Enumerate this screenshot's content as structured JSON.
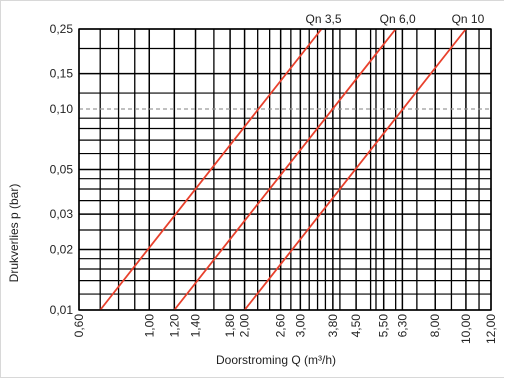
{
  "chart_data": {
    "type": "line",
    "xlabel": "Doorstroming Q (m³/h)",
    "ylabel": "Drukverlies p (bar)",
    "xscale": "log",
    "yscale": "log",
    "xlim": [
      0.6,
      12.0
    ],
    "ylim": [
      0.01,
      0.25
    ],
    "x_ticks": [
      0.6,
      1.0,
      1.2,
      1.4,
      1.8,
      2.0,
      2.6,
      3.0,
      3.8,
      4.5,
      5.5,
      6.3,
      8.0,
      10.0,
      12.0
    ],
    "x_tick_labels": [
      "0,60",
      "1,00",
      "1,20",
      "1,40",
      "1,80",
      "2,00",
      "2,60",
      "3,00",
      "3,80",
      "4,50",
      "5,50",
      "6,30",
      "8,00",
      "10,00",
      "12,00"
    ],
    "y_ticks": [
      0.01,
      0.02,
      0.03,
      0.05,
      0.1,
      0.15,
      0.25
    ],
    "y_tick_labels": [
      "0,01",
      "0,02",
      "0,03",
      "0,05",
      "0,10",
      "0,15",
      "0,25"
    ],
    "minor_x": [
      0.7,
      0.8,
      0.9,
      1.6,
      2.2,
      2.4,
      2.8,
      3.2,
      3.4,
      3.6,
      4.0,
      5.0,
      5.2,
      6.0,
      7.0,
      9.0,
      11.0
    ],
    "minor_y": [
      0.012,
      0.014,
      0.016,
      0.018,
      0.025,
      0.035,
      0.04,
      0.045,
      0.06,
      0.07,
      0.08,
      0.09,
      0.12,
      0.2
    ],
    "dashed_y": [
      0.1
    ],
    "grid": true,
    "series": [
      {
        "name": "Qn 3,5",
        "x": [
          0.7,
          3.5
        ],
        "y": [
          0.01,
          0.25
        ]
      },
      {
        "name": "Qn 6,0",
        "x": [
          1.2,
          6.0
        ],
        "y": [
          0.01,
          0.25
        ]
      },
      {
        "name": "Qn 10",
        "x": [
          2.0,
          10.0
        ],
        "y": [
          0.01,
          0.25
        ]
      }
    ],
    "colors": {
      "series": "#e8402c",
      "grid": "#000000",
      "dashed": "#9a9a9a"
    }
  }
}
